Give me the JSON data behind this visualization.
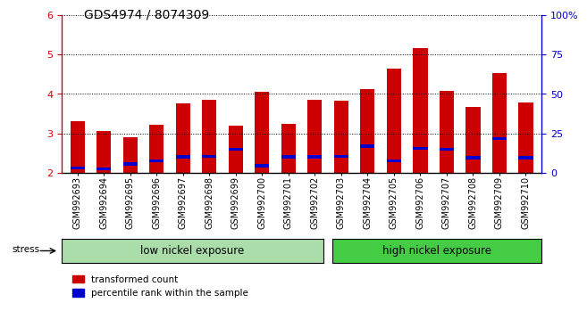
{
  "title": "GDS4974 / 8074309",
  "categories": [
    "GSM992693",
    "GSM992694",
    "GSM992695",
    "GSM992696",
    "GSM992697",
    "GSM992698",
    "GSM992699",
    "GSM992700",
    "GSM992701",
    "GSM992702",
    "GSM992703",
    "GSM992704",
    "GSM992705",
    "GSM992706",
    "GSM992707",
    "GSM992708",
    "GSM992709",
    "GSM992710"
  ],
  "red_values": [
    3.3,
    3.05,
    2.9,
    3.22,
    3.75,
    3.85,
    3.2,
    4.05,
    3.25,
    3.85,
    3.82,
    4.12,
    4.65,
    5.17,
    4.08,
    3.67,
    4.52,
    3.78
  ],
  "blue_values": [
    2.12,
    2.1,
    2.22,
    2.3,
    2.4,
    2.42,
    2.6,
    2.18,
    2.4,
    2.4,
    2.42,
    2.67,
    2.3,
    2.62,
    2.6,
    2.38,
    2.87,
    2.38
  ],
  "ylim_left": [
    2.0,
    6.0
  ],
  "ylim_right": [
    0,
    100
  ],
  "yticks_left": [
    2,
    3,
    4,
    5,
    6
  ],
  "yticks_right": [
    0,
    25,
    50,
    75,
    100
  ],
  "bar_color_red": "#cc0000",
  "bar_color_blue": "#0000cc",
  "bar_width": 0.55,
  "group1_count": 10,
  "group1_label": "low nickel exposure",
  "group2_label": "high nickel exposure",
  "group1_color": "#aaddaa",
  "group2_color": "#44cc44",
  "stress_label": "stress",
  "legend1": "transformed count",
  "legend2": "percentile rank within the sample",
  "background_color": "#ffffff",
  "plot_bg_color": "#ffffff",
  "axis_color_left": "#cc0000",
  "axis_color_right": "#0000cc",
  "title_fontsize": 10,
  "tick_fontsize": 7,
  "group_label_fontsize": 8.5
}
